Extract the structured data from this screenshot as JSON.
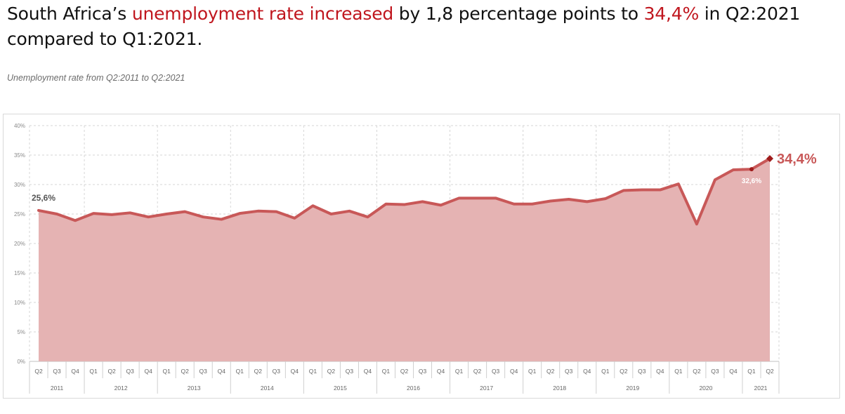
{
  "headline": {
    "part1": "South Africa’s ",
    "highlight1": "unemployment rate increased",
    "part2": " by 1,8 percentage points to ",
    "highlight2": "34,4%",
    "part3": " in Q2:2021 compared to Q1:2021."
  },
  "colors": {
    "accent": "#c0161e",
    "line": "#c85858",
    "area": "#e5b3b3"
  },
  "chart_data": {
    "type": "area",
    "title": "Unemployment rate from Q2:2011 to Q2:2021",
    "ylim": [
      0,
      40
    ],
    "y_ticks": [
      "0%",
      "5%",
      "10%",
      "15%",
      "20%",
      "25%",
      "30%",
      "35%",
      "40%"
    ],
    "grid": true,
    "categories": [
      "Q2",
      "Q3",
      "Q4",
      "Q1",
      "Q2",
      "Q3",
      "Q4",
      "Q1",
      "Q2",
      "Q3",
      "Q4",
      "Q1",
      "Q2",
      "Q3",
      "Q4",
      "Q1",
      "Q2",
      "Q3",
      "Q4",
      "Q1",
      "Q2",
      "Q3",
      "Q4",
      "Q1",
      "Q2",
      "Q3",
      "Q4",
      "Q1",
      "Q2",
      "Q3",
      "Q4",
      "Q1",
      "Q2",
      "Q3",
      "Q4",
      "Q1",
      "Q2",
      "Q3",
      "Q4",
      "Q1",
      "Q2"
    ],
    "years": [
      {
        "label": "2011",
        "count": 3
      },
      {
        "label": "2012",
        "count": 4
      },
      {
        "label": "2013",
        "count": 4
      },
      {
        "label": "2014",
        "count": 4
      },
      {
        "label": "2015",
        "count": 4
      },
      {
        "label": "2016",
        "count": 4
      },
      {
        "label": "2017",
        "count": 4
      },
      {
        "label": "2018",
        "count": 4
      },
      {
        "label": "2019",
        "count": 4
      },
      {
        "label": "2020",
        "count": 4
      },
      {
        "label": "2021",
        "count": 2
      }
    ],
    "values": [
      25.6,
      25.0,
      23.9,
      25.1,
      24.9,
      25.2,
      24.5,
      25.0,
      25.4,
      24.5,
      24.1,
      25.1,
      25.5,
      25.4,
      24.3,
      26.4,
      25.0,
      25.5,
      24.5,
      26.7,
      26.6,
      27.1,
      26.5,
      27.7,
      27.7,
      27.7,
      26.7,
      26.7,
      27.2,
      27.5,
      27.1,
      27.6,
      29.0,
      29.1,
      29.1,
      30.1,
      23.3,
      30.8,
      32.5,
      32.6,
      34.4
    ],
    "data_labels": [
      {
        "index": 0,
        "text": "25,6%"
      },
      {
        "index": 39,
        "text": "32,6%"
      },
      {
        "index": 40,
        "text": "34,4%"
      }
    ]
  }
}
